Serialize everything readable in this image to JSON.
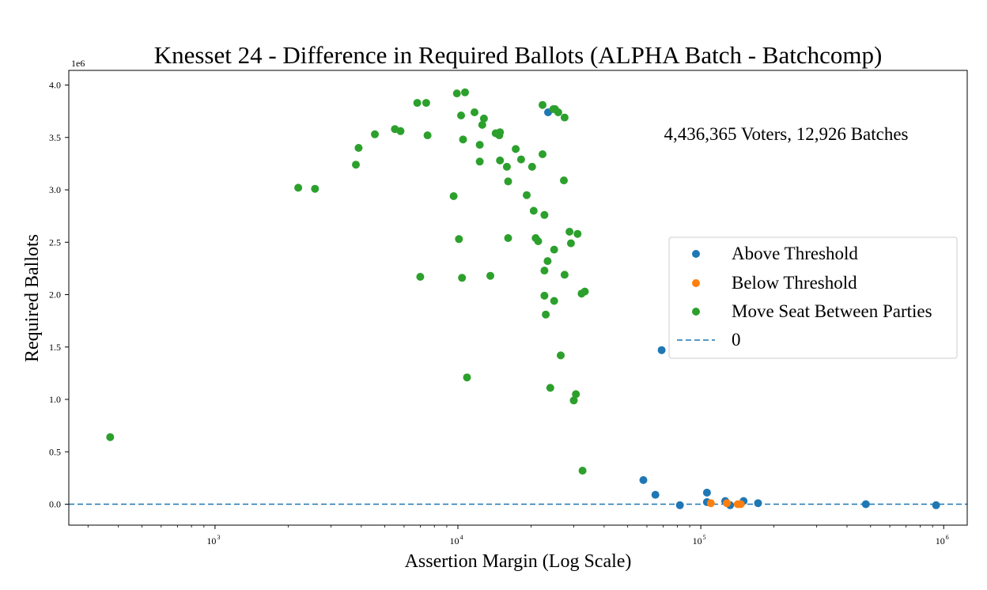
{
  "chart_data": {
    "type": "scatter",
    "title": "Knesset 24 - Difference in Required Ballots (ALPHA Batch - Batchcomp)",
    "xlabel": "Assertion Margin (Log Scale)",
    "ylabel": "Required Ballots",
    "y_offset_label": "1e6",
    "annotation": "4,436,365 Voters, 12,926 Batches",
    "x_scale": "log",
    "xlim": [
      250,
      1250000
    ],
    "ylim": [
      -0.2,
      4.14
    ],
    "x_ticks": [
      {
        "value": 1000,
        "base": "10",
        "exp": "3"
      },
      {
        "value": 10000,
        "base": "10",
        "exp": "4"
      },
      {
        "value": 100000,
        "base": "10",
        "exp": "5"
      },
      {
        "value": 1000000,
        "base": "10",
        "exp": "6"
      }
    ],
    "y_ticks": [
      {
        "value": 0.0,
        "label": "0.0"
      },
      {
        "value": 0.5,
        "label": "0.5"
      },
      {
        "value": 1.0,
        "label": "1.0"
      },
      {
        "value": 1.5,
        "label": "1.5"
      },
      {
        "value": 2.0,
        "label": "2.0"
      },
      {
        "value": 2.5,
        "label": "2.5"
      },
      {
        "value": 3.0,
        "label": "3.0"
      },
      {
        "value": 3.5,
        "label": "3.5"
      },
      {
        "value": 4.0,
        "label": "4.0"
      }
    ],
    "legend_position": "center-right",
    "grid": false,
    "series": [
      {
        "name": "Above Threshold",
        "color": "#1f77b4",
        "points": [
          [
            23500,
            3.74
          ],
          [
            69000,
            1.47
          ],
          [
            58000,
            0.23
          ],
          [
            65000,
            0.09
          ],
          [
            82000,
            -0.01
          ],
          [
            106000,
            0.11
          ],
          [
            106000,
            0.02
          ],
          [
            126000,
            0.03
          ],
          [
            132000,
            -0.01
          ],
          [
            150000,
            0.03
          ],
          [
            172000,
            0.01
          ],
          [
            478000,
            0.0
          ],
          [
            930000,
            -0.01
          ]
        ]
      },
      {
        "name": "Below Threshold",
        "color": "#ff7f0e",
        "points": [
          [
            110000,
            0.01
          ],
          [
            128000,
            0.01
          ],
          [
            142000,
            0.0
          ],
          [
            146000,
            0.0
          ]
        ]
      },
      {
        "name": "Move Seat Between Parties",
        "color": "#2ca02c",
        "points": [
          [
            370,
            0.64
          ],
          [
            2200,
            3.02
          ],
          [
            2580,
            3.01
          ],
          [
            3800,
            3.24
          ],
          [
            3900,
            3.4
          ],
          [
            4550,
            3.53
          ],
          [
            5500,
            3.58
          ],
          [
            5800,
            3.56
          ],
          [
            6800,
            3.83
          ],
          [
            7000,
            2.17
          ],
          [
            7400,
            3.83
          ],
          [
            7500,
            3.52
          ],
          [
            9600,
            2.94
          ],
          [
            9900,
            3.92
          ],
          [
            10100,
            2.53
          ],
          [
            10300,
            3.71
          ],
          [
            10400,
            2.16
          ],
          [
            10500,
            3.48
          ],
          [
            10700,
            3.93
          ],
          [
            10900,
            1.21
          ],
          [
            11700,
            3.74
          ],
          [
            12300,
            3.43
          ],
          [
            12300,
            3.27
          ],
          [
            12600,
            3.62
          ],
          [
            12800,
            3.68
          ],
          [
            13600,
            2.18
          ],
          [
            14300,
            3.54
          ],
          [
            14800,
            3.52
          ],
          [
            14900,
            3.55
          ],
          [
            14900,
            3.28
          ],
          [
            15900,
            3.22
          ],
          [
            16100,
            3.08
          ],
          [
            16100,
            2.54
          ],
          [
            17300,
            3.39
          ],
          [
            18200,
            3.29
          ],
          [
            19200,
            2.95
          ],
          [
            20200,
            3.22
          ],
          [
            20500,
            2.8
          ],
          [
            20900,
            2.54
          ],
          [
            21400,
            2.51
          ],
          [
            22300,
            3.81
          ],
          [
            22300,
            3.34
          ],
          [
            22700,
            2.76
          ],
          [
            22700,
            2.23
          ],
          [
            22700,
            1.99
          ],
          [
            23000,
            1.81
          ],
          [
            23400,
            2.32
          ],
          [
            24000,
            1.11
          ],
          [
            24700,
            3.77
          ],
          [
            24900,
            1.94
          ],
          [
            24900,
            2.43
          ],
          [
            25100,
            3.77
          ],
          [
            25900,
            3.74
          ],
          [
            26500,
            1.42
          ],
          [
            27300,
            3.09
          ],
          [
            27500,
            3.69
          ],
          [
            27500,
            2.19
          ],
          [
            28800,
            2.6
          ],
          [
            29200,
            2.49
          ],
          [
            30000,
            0.99
          ],
          [
            30600,
            1.05
          ],
          [
            31100,
            2.58
          ],
          [
            32300,
            2.01
          ],
          [
            32600,
            0.32
          ],
          [
            33300,
            2.03
          ]
        ]
      }
    ],
    "reference_line": {
      "name": "0",
      "y": 0.0,
      "style": "dashed",
      "color": "#1f77b4"
    }
  }
}
